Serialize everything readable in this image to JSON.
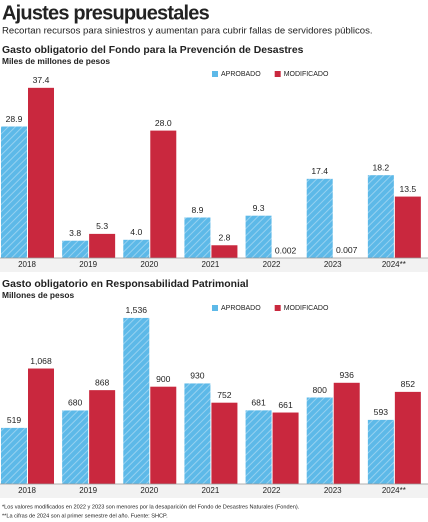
{
  "header": {
    "title": "Ajustes presupuestales",
    "subtitle": "Recortan recursos para siniestros y aumentan para cubrir fallas de servidores públicos."
  },
  "chart_data": [
    {
      "type": "bar",
      "title": "Gasto obligatorio del Fondo para la Prevención de Desastres",
      "subtitle": "Miles de millones de pesos",
      "categories": [
        "2018",
        "2019",
        "2020",
        "2021",
        "2022",
        "2023",
        "2024**"
      ],
      "series": [
        {
          "name": "APROBADO",
          "color": "#5db9e8",
          "pattern": "hatched",
          "values": [
            28.9,
            3.8,
            4.0,
            8.9,
            9.3,
            17.4,
            18.2
          ],
          "value_labels": [
            "28.9",
            "3.8",
            "4.0",
            "8.9",
            "9.3",
            "17.4",
            "18.2"
          ]
        },
        {
          "name": "MODIFICADO",
          "color": "#c9283e",
          "values": [
            37.4,
            5.3,
            28.0,
            2.8,
            0.002,
            0.007,
            13.5
          ],
          "value_labels": [
            "37.4",
            "5.3",
            "28.0",
            "2.8",
            "0.002",
            "0.007",
            "13.5"
          ]
        }
      ],
      "ylim": [
        0,
        40
      ],
      "legend": "top-right"
    },
    {
      "type": "bar",
      "title": "Gasto obligatorio en Responsabilidad Patrimonial",
      "subtitle": "Millones de pesos",
      "categories": [
        "2018",
        "2019",
        "2020",
        "2021",
        "2022",
        "2023",
        "2024**"
      ],
      "series": [
        {
          "name": "APROBADO",
          "color": "#5db9e8",
          "pattern": "hatched",
          "values": [
            519,
            680,
            1536,
            930,
            681,
            800,
            593
          ],
          "value_labels": [
            "519",
            "680",
            "1,536",
            "930",
            "681",
            "800",
            "593"
          ]
        },
        {
          "name": "MODIFICADO",
          "color": "#c9283e",
          "values": [
            1068,
            868,
            900,
            752,
            661,
            936,
            852
          ],
          "value_labels": [
            "1,068",
            "868",
            "900",
            "752",
            "661",
            "936",
            "852"
          ]
        }
      ],
      "ylim": [
        0,
        1600
      ],
      "legend": "top-right"
    }
  ],
  "notes": [
    "*Los valores modificados en 2022 y 2023 son menores por la desaparición del Fondo de Desastres Naturales (Fonden).",
    "**La cifras de 2024 son al primer semestre del año. Fuente: SHCP."
  ]
}
